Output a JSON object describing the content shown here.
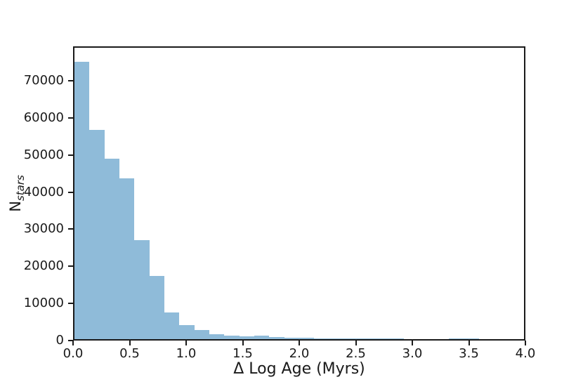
{
  "figure": {
    "background": "#ffffff",
    "spine_color": "#1a1a1a",
    "text_color": "#1a1a1a"
  },
  "chart_data": {
    "type": "bar",
    "subtype": "histogram",
    "title": "",
    "xlabel": "Δ Log Age (Myrs)",
    "ylabel_base": "N",
    "ylabel_sub": "stars",
    "bar_color": "#8fbbd9",
    "grid": false,
    "legend": null,
    "xlim": [
      0,
      4
    ],
    "ylim": [
      0,
      79275
    ],
    "xtick_values": [
      0.0,
      0.5,
      1.0,
      1.5,
      2.0,
      2.5,
      3.0,
      3.5,
      4.0
    ],
    "xtick_labels": [
      "0.0",
      "0.5",
      "1.0",
      "1.5",
      "2.0",
      "2.5",
      "3.0",
      "3.5",
      "4.0"
    ],
    "ytick_values": [
      0,
      10000,
      20000,
      30000,
      40000,
      50000,
      60000,
      70000
    ],
    "ytick_labels": [
      "0",
      "10000",
      "20000",
      "30000",
      "40000",
      "50000",
      "60000",
      "70000"
    ],
    "bin_edges": [
      0,
      0.1333,
      0.2667,
      0.4,
      0.5333,
      0.6667,
      0.8,
      0.9333,
      1.0667,
      1.2,
      1.3333,
      1.4667,
      1.6,
      1.7333,
      1.8667,
      2.0,
      2.1333,
      2.2667,
      2.4,
      2.5333,
      2.6667,
      2.8,
      2.9333,
      3.0667,
      3.2,
      3.3333,
      3.4667,
      3.6,
      3.7333,
      3.8667,
      4.0
    ],
    "counts": [
      75500,
      57000,
      49100,
      43700,
      27000,
      17200,
      7300,
      3900,
      2500,
      1400,
      1000,
      750,
      900,
      570,
      380,
      300,
      280,
      260,
      240,
      180,
      160,
      140,
      0,
      0,
      0,
      170,
      150,
      0,
      0,
      0
    ]
  }
}
